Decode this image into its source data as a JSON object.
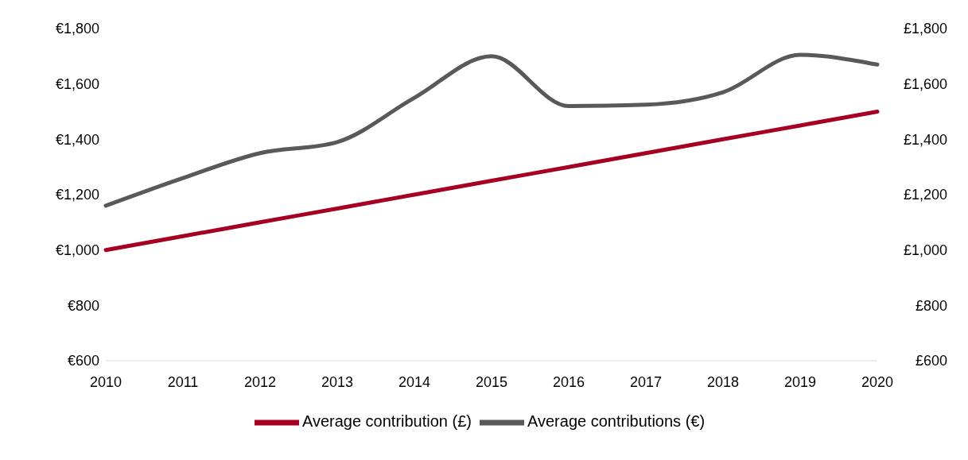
{
  "chart_data": {
    "type": "line",
    "categories": [
      "2010",
      "2011",
      "2012",
      "2013",
      "2014",
      "2015",
      "2016",
      "2017",
      "2018",
      "2019",
      "2020"
    ],
    "series": [
      {
        "name": "Average contributions (€)",
        "color": "#595959",
        "values": [
          1160,
          1260,
          1350,
          1390,
          1550,
          1700,
          1520,
          1525,
          1570,
          1705,
          1670
        ]
      },
      {
        "name": "Average contribution (£)",
        "color": "#a50021",
        "axis": "y2",
        "values": [
          1000,
          1050,
          1100,
          1150,
          1200,
          1250,
          1300,
          1350,
          1400,
          1450,
          1500
        ]
      }
    ],
    "ylim": [
      600,
      1800
    ],
    "yticks": [
      {
        "value": 600,
        "label": "€600"
      },
      {
        "value": 800,
        "label": "€800"
      },
      {
        "value": 1000,
        "label": "€1,000"
      },
      {
        "value": 1200,
        "label": "€1,200"
      },
      {
        "value": 1400,
        "label": "€1,400"
      },
      {
        "value": 1600,
        "label": "€1,600"
      },
      {
        "value": 1800,
        "label": "€1,800"
      }
    ],
    "y2lim": [
      600,
      1800
    ],
    "y2ticks": [
      {
        "value": 600,
        "label": "£600"
      },
      {
        "value": 800,
        "label": "£800"
      },
      {
        "value": 1000,
        "label": "£1,000"
      },
      {
        "value": 1200,
        "label": "£1,200"
      },
      {
        "value": 1400,
        "label": "£1,400"
      },
      {
        "value": 1600,
        "label": "£1,600"
      },
      {
        "value": 1800,
        "label": "£1,800"
      }
    ],
    "legend": "bottom",
    "line_style": "solid",
    "marker": "none",
    "grid": false
  }
}
